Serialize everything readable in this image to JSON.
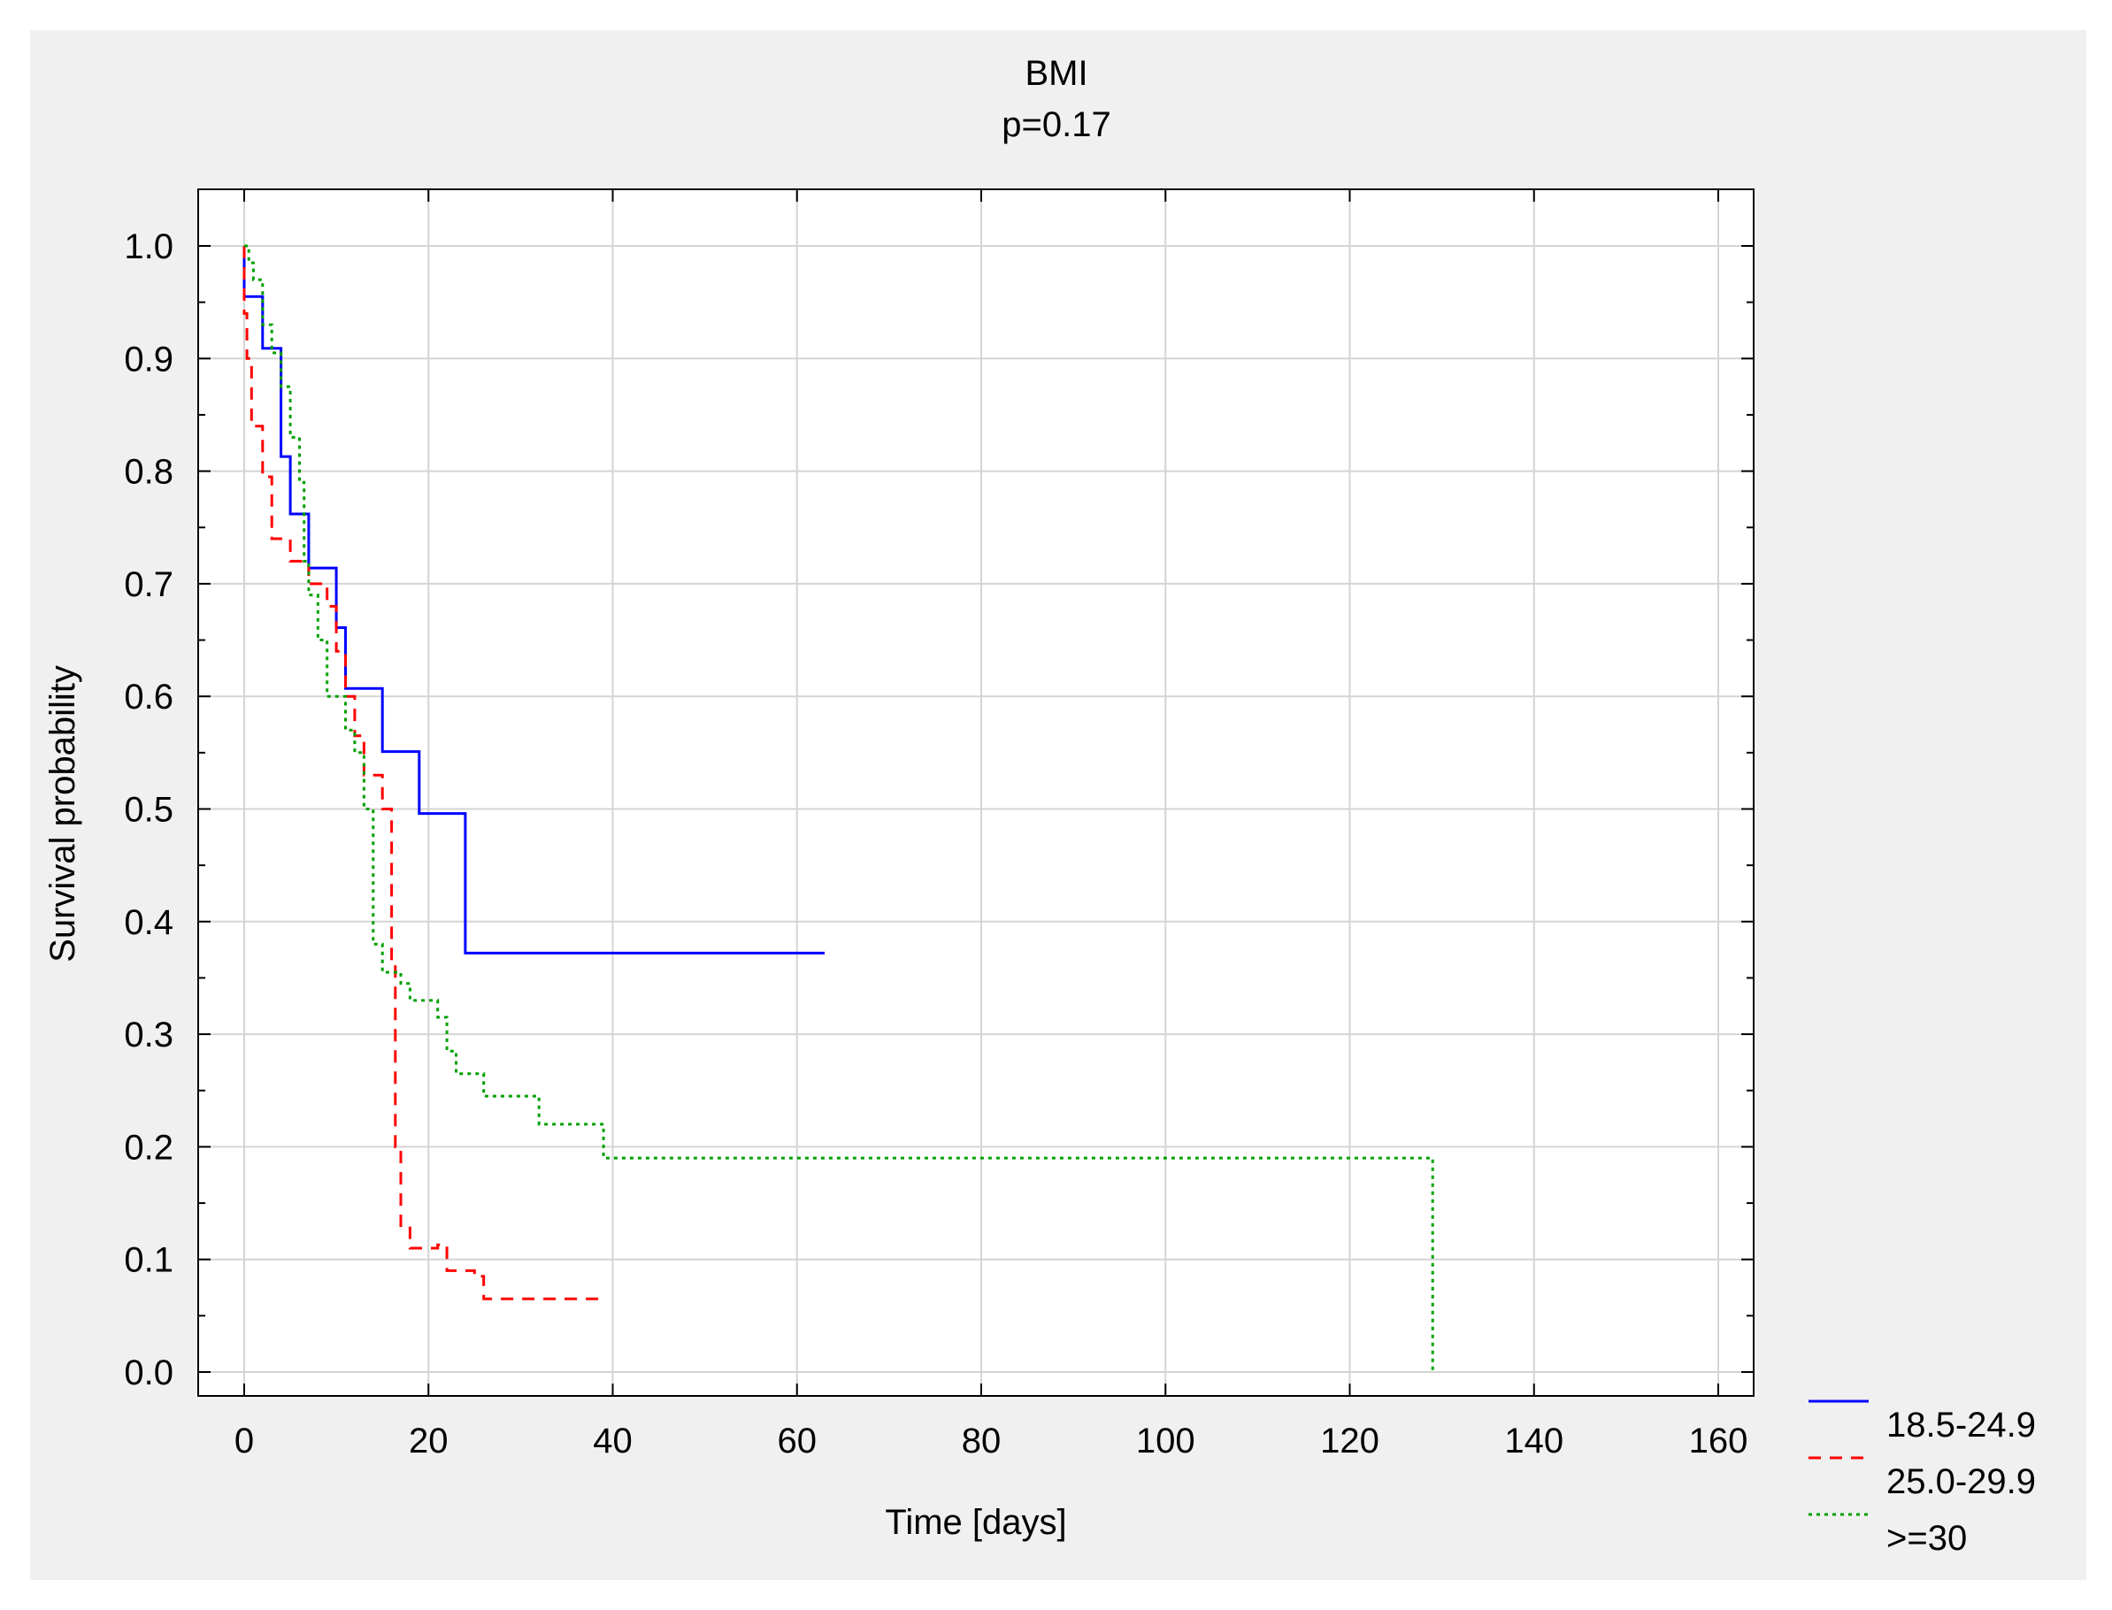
{
  "chart_data": {
    "type": "line",
    "subtype": "step",
    "title": "BMI",
    "subtitle": "p=0.17",
    "xlabel": "Time [days]",
    "ylabel": "Survival probability",
    "xlim": [
      0,
      160
    ],
    "ylim": [
      0.0,
      1.0
    ],
    "x_ticks": [
      "0",
      "20",
      "40",
      "60",
      "80",
      "100",
      "120",
      "140",
      "160"
    ],
    "y_ticks": [
      "0.0",
      "0.1",
      "0.2",
      "0.3",
      "0.4",
      "0.5",
      "0.6",
      "0.7",
      "0.8",
      "0.9",
      "1.0"
    ],
    "grid": true,
    "legend_position": "bottom-right, outside plot",
    "series": [
      {
        "name": "18.5-24.9",
        "color": "#0000ff",
        "style": "solid",
        "points": [
          [
            0,
            1.0
          ],
          [
            0,
            0.955
          ],
          [
            2,
            0.955
          ],
          [
            2,
            0.909
          ],
          [
            4,
            0.909
          ],
          [
            4,
            0.813
          ],
          [
            5,
            0.813
          ],
          [
            5,
            0.762
          ],
          [
            7,
            0.762
          ],
          [
            7,
            0.714
          ],
          [
            10,
            0.714
          ],
          [
            10,
            0.661
          ],
          [
            11,
            0.661
          ],
          [
            11,
            0.607
          ],
          [
            15,
            0.607
          ],
          [
            15,
            0.551
          ],
          [
            19,
            0.551
          ],
          [
            19,
            0.496
          ],
          [
            24,
            0.496
          ],
          [
            24,
            0.372
          ],
          [
            63,
            0.372
          ]
        ]
      },
      {
        "name": "25.0-29.9",
        "color": "#ff0000",
        "style": "dashed",
        "points": [
          [
            0,
            1.0
          ],
          [
            0,
            0.94
          ],
          [
            0.3,
            0.94
          ],
          [
            0.3,
            0.9
          ],
          [
            0.8,
            0.9
          ],
          [
            0.8,
            0.84
          ],
          [
            2,
            0.84
          ],
          [
            2,
            0.795
          ],
          [
            3,
            0.795
          ],
          [
            3,
            0.74
          ],
          [
            5,
            0.74
          ],
          [
            5,
            0.72
          ],
          [
            7,
            0.72
          ],
          [
            7,
            0.7
          ],
          [
            9,
            0.7
          ],
          [
            9,
            0.68
          ],
          [
            10,
            0.68
          ],
          [
            10,
            0.64
          ],
          [
            11,
            0.64
          ],
          [
            11,
            0.6
          ],
          [
            12,
            0.6
          ],
          [
            12,
            0.565
          ],
          [
            13,
            0.565
          ],
          [
            13,
            0.53
          ],
          [
            15,
            0.53
          ],
          [
            15,
            0.5
          ],
          [
            16,
            0.5
          ],
          [
            16,
            0.36
          ],
          [
            16.4,
            0.36
          ],
          [
            16.4,
            0.2
          ],
          [
            17,
            0.2
          ],
          [
            17,
            0.13
          ],
          [
            18,
            0.13
          ],
          [
            18,
            0.11
          ],
          [
            21,
            0.11
          ],
          [
            21,
            0.113
          ],
          [
            22,
            0.113
          ],
          [
            22,
            0.09
          ],
          [
            25,
            0.09
          ],
          [
            25,
            0.085
          ],
          [
            26,
            0.085
          ],
          [
            26,
            0.065
          ],
          [
            39,
            0.065
          ]
        ]
      },
      {
        "name": ">=30",
        "color": "#00a000",
        "style": "dotted",
        "points": [
          [
            0,
            1.0
          ],
          [
            0.5,
            1.0
          ],
          [
            0.5,
            0.985
          ],
          [
            1,
            0.985
          ],
          [
            1,
            0.97
          ],
          [
            2,
            0.97
          ],
          [
            2,
            0.93
          ],
          [
            3,
            0.93
          ],
          [
            3,
            0.905
          ],
          [
            4,
            0.905
          ],
          [
            4,
            0.875
          ],
          [
            5,
            0.875
          ],
          [
            5,
            0.83
          ],
          [
            6,
            0.83
          ],
          [
            6,
            0.79
          ],
          [
            6.5,
            0.79
          ],
          [
            6.5,
            0.72
          ],
          [
            7,
            0.72
          ],
          [
            7,
            0.69
          ],
          [
            8,
            0.69
          ],
          [
            8,
            0.65
          ],
          [
            9,
            0.65
          ],
          [
            9,
            0.6
          ],
          [
            11,
            0.6
          ],
          [
            11,
            0.57
          ],
          [
            12,
            0.57
          ],
          [
            12,
            0.55
          ],
          [
            13,
            0.55
          ],
          [
            13,
            0.5
          ],
          [
            14,
            0.5
          ],
          [
            14,
            0.38
          ],
          [
            15,
            0.38
          ],
          [
            15,
            0.355
          ],
          [
            17,
            0.355
          ],
          [
            17,
            0.345
          ],
          [
            18,
            0.345
          ],
          [
            18,
            0.33
          ],
          [
            21,
            0.33
          ],
          [
            21,
            0.315
          ],
          [
            22,
            0.315
          ],
          [
            22,
            0.285
          ],
          [
            23,
            0.285
          ],
          [
            23,
            0.265
          ],
          [
            26,
            0.265
          ],
          [
            26,
            0.245
          ],
          [
            32,
            0.245
          ],
          [
            32,
            0.22
          ],
          [
            39,
            0.22
          ],
          [
            39,
            0.19
          ],
          [
            129,
            0.19
          ],
          [
            129,
            0.0
          ]
        ]
      }
    ]
  }
}
